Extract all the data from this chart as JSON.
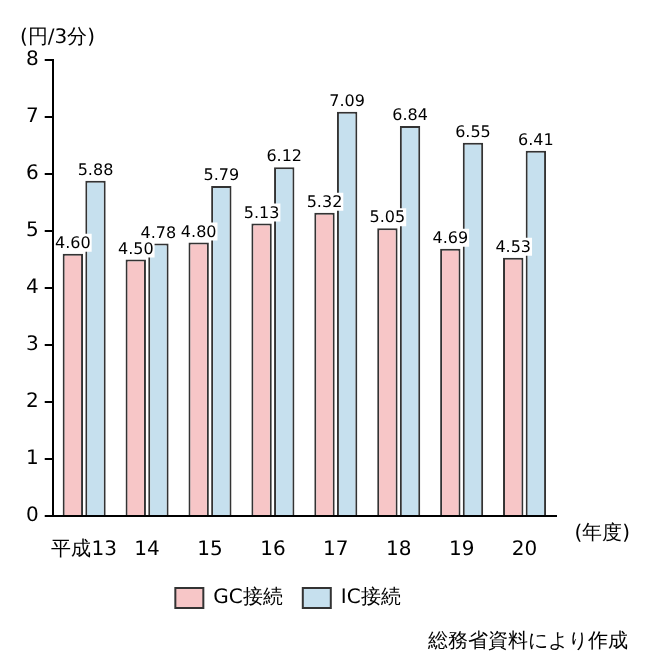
{
  "chart_data": {
    "type": "bar",
    "ylabel": "(円/3分)",
    "xlabel": "(年度)",
    "categories": [
      "平成13",
      "14",
      "15",
      "16",
      "17",
      "18",
      "19",
      "20"
    ],
    "series": [
      {
        "name": "GC接続",
        "color": "#f7c6c7",
        "values": [
          4.6,
          4.5,
          4.8,
          5.13,
          5.32,
          5.05,
          4.69,
          4.53
        ],
        "value_labels": [
          "4.60",
          "4.50",
          "4.80",
          "5.13",
          "5.32",
          "5.05",
          "4.69",
          "4.53"
        ]
      },
      {
        "name": "IC接続",
        "color": "#c6e0ee",
        "values": [
          5.88,
          4.78,
          5.79,
          6.12,
          7.09,
          6.84,
          6.55,
          6.41
        ],
        "value_labels": [
          "5.88",
          "4.78",
          "5.79",
          "6.12",
          "7.09",
          "6.84",
          "6.55",
          "6.41"
        ]
      }
    ],
    "ylim": [
      0,
      8
    ],
    "yticks": [
      0,
      1,
      2,
      3,
      4,
      5,
      6,
      7,
      8
    ],
    "grid": false,
    "legend": "bottom",
    "annotations": [
      "総務省資料により作成"
    ]
  }
}
